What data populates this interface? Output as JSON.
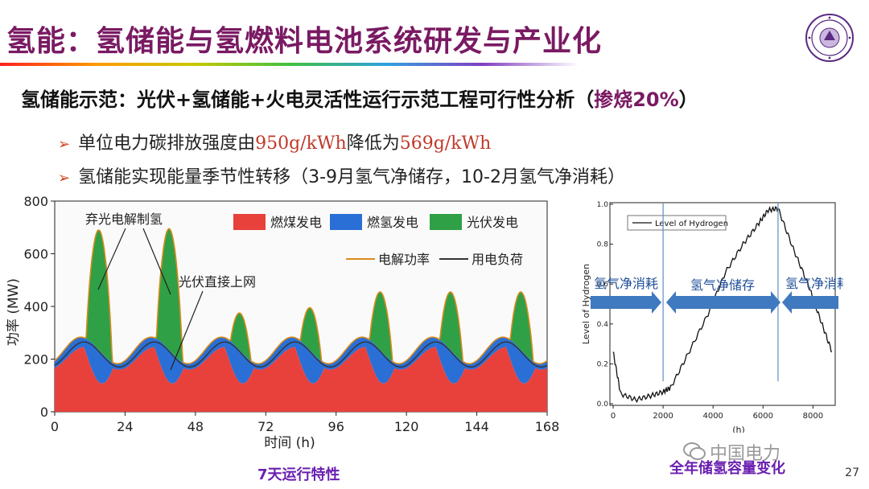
{
  "title": "氢能：氢储能与氢燃料电池系统研发与产业化",
  "subtitle": {
    "main": "氢储能示范：光伏+氢储能+火电灵活性运行示范工程可行性分析（",
    "highlight": "掺烧20%",
    "end": "）"
  },
  "bullets": [
    {
      "prefix": "单位电力碳排放强度由",
      "v1": "950g/kWh",
      "mid": "降低为",
      "v2": "569g/kWh"
    },
    {
      "text": "氢储能实现能量季节性转移（3-9月氢气净储存，10-2月氢气净消耗）"
    }
  ],
  "colors": {
    "coal": "#e8413c",
    "hydrogen": "#2a6fd6",
    "pv": "#2fa046",
    "electrolysis": "#d98a1c",
    "load": "#333333",
    "title": "#7a1a63",
    "caption": "#6a1fb0"
  },
  "page_number": "27",
  "watermark": "中国电力",
  "chart_data": [
    {
      "type": "area",
      "title": "",
      "xlabel": "时间 (h)",
      "ylabel": "功率 (MW)",
      "xlim": [
        0,
        168
      ],
      "ylim": [
        0,
        800
      ],
      "xticks": [
        "0",
        "24",
        "48",
        "72",
        "96",
        "120",
        "144",
        "168"
      ],
      "yticks": [
        "0",
        "200",
        "400",
        "600",
        "800"
      ],
      "legend": [
        {
          "name": "燃煤发电",
          "color": "#e8413c"
        },
        {
          "name": "燃氢发电",
          "color": "#2a6fd6"
        },
        {
          "name": "光伏发电",
          "color": "#2fa046"
        },
        {
          "name": "电解功率",
          "color": "#d98a1c"
        },
        {
          "name": "用电负荷",
          "color": "#333333"
        }
      ],
      "annotations": [
        "弃光电解制氢",
        "光伏直接上网"
      ],
      "caption": "7天运行特性",
      "pv_peaks_mw": [
        690,
        695,
        375,
        395,
        455,
        455,
        455
      ],
      "coal_peak_mw": 245,
      "load_peak_mw": 265
    },
    {
      "type": "line",
      "title": "",
      "xlabel": "(h)",
      "ylabel": "Level of Hydrogen",
      "xlim": [
        0,
        8760
      ],
      "ylim": [
        0,
        1.0
      ],
      "xticks": [
        "0",
        "2000",
        "4000",
        "6000",
        "8000"
      ],
      "yticks": [
        "0.0",
        "0.2",
        "0.4",
        "0.6",
        "0.8",
        "1.0"
      ],
      "legend": [
        {
          "name": "Level of Hydrogen",
          "color": "#111111"
        }
      ],
      "series": [
        {
          "name": "Level of Hydrogen",
          "x": [
            0,
            300,
            900,
            1500,
            2000,
            2300,
            3000,
            3800,
            4500,
            5200,
            5800,
            6200,
            6600,
            7200,
            7800,
            8300,
            8760
          ],
          "y": [
            0.26,
            0.05,
            0.02,
            0.04,
            0.06,
            0.08,
            0.25,
            0.45,
            0.66,
            0.8,
            0.9,
            0.97,
            0.98,
            0.78,
            0.6,
            0.42,
            0.26
          ]
        }
      ],
      "phase_labels": [
        "氢气净消耗",
        "氢气净储存",
        "氢气净消耗"
      ],
      "phase_boundaries_h": [
        2000,
        6600
      ],
      "caption": "全年储氢容量变化"
    }
  ]
}
